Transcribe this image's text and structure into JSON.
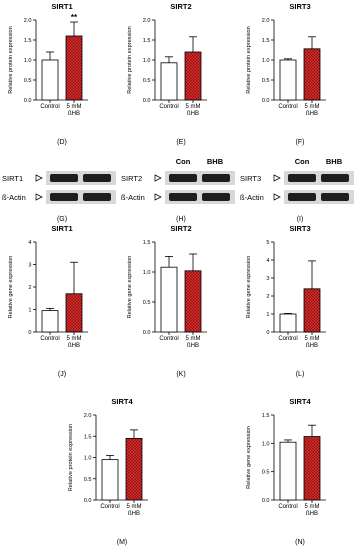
{
  "chart_data": [
    {
      "type": "bar",
      "title": "SIRT1",
      "ylabel": "Relative protein expression",
      "panel_label": "(D)",
      "categories": [
        "Control",
        "5 mM\nßHB"
      ],
      "series": [
        {
          "values": [
            1.0,
            1.6
          ],
          "errors": [
            0.2,
            0.35
          ],
          "colors": [
            "#ffffff",
            "#d42a2a"
          ],
          "hatch": [
            false,
            true
          ]
        }
      ],
      "ylim": [
        0,
        2
      ],
      "yticks": [
        {
          "value": 0,
          "label": "0.0"
        },
        0.5,
        {
          "value": 1,
          "label": "1.0"
        },
        1.5,
        {
          "value": 2,
          "label": "2.0"
        }
      ],
      "annotation": "**"
    },
    {
      "type": "bar",
      "title": "SIRT2",
      "ylabel": "Relative protein expression",
      "panel_label": "(E)",
      "categories": [
        "Control",
        "5 mM\nßHB"
      ],
      "series": [
        {
          "values": [
            0.93,
            1.2
          ],
          "errors": [
            0.15,
            0.38
          ],
          "colors": [
            "#ffffff",
            "#d42a2a"
          ],
          "hatch": [
            false,
            true
          ]
        }
      ],
      "ylim": [
        0,
        2
      ],
      "yticks": [
        {
          "value": 0,
          "label": "0.0"
        },
        0.5,
        {
          "value": 1,
          "label": "1.0"
        },
        1.5,
        {
          "value": 2,
          "label": "2.0"
        }
      ]
    },
    {
      "type": "bar",
      "title": "SIRT3",
      "ylabel": "Relative protein expression",
      "panel_label": "(F)",
      "categories": [
        "Control",
        "5 mM\nßHB"
      ],
      "series": [
        {
          "values": [
            1.0,
            1.28
          ],
          "errors": [
            0.03,
            0.3
          ],
          "colors": [
            "#ffffff",
            "#d42a2a"
          ],
          "hatch": [
            false,
            true
          ]
        }
      ],
      "ylim": [
        0,
        2
      ],
      "yticks": [
        {
          "value": 0,
          "label": "0.0"
        },
        0.5,
        {
          "value": 1,
          "label": "1.0"
        },
        1.5,
        {
          "value": 2,
          "label": "2.0"
        }
      ]
    },
    {
      "type": "bar",
      "title": "SIRT1",
      "ylabel": "Relative gene expression",
      "panel_label": "(J)",
      "categories": [
        "Control",
        "5 mM\nßHB"
      ],
      "series": [
        {
          "values": [
            0.95,
            1.7
          ],
          "errors": [
            0.1,
            1.4
          ],
          "colors": [
            "#ffffff",
            "#d42a2a"
          ],
          "hatch": [
            false,
            true
          ]
        }
      ],
      "ylim": [
        0,
        4
      ],
      "yticks": [
        0,
        1,
        2,
        3,
        4
      ]
    },
    {
      "type": "bar",
      "title": "SIRT2",
      "ylabel": "Relative gene expression",
      "panel_label": "(K)",
      "categories": [
        "Control",
        "5 mM\nßHB"
      ],
      "series": [
        {
          "values": [
            1.08,
            1.02
          ],
          "errors": [
            0.18,
            0.28
          ],
          "colors": [
            "#ffffff",
            "#d42a2a"
          ],
          "hatch": [
            false,
            true
          ]
        }
      ],
      "ylim": [
        0,
        1.5
      ],
      "yticks": [
        {
          "value": 0,
          "label": "0.0"
        },
        0.5,
        {
          "value": 1,
          "label": "1.0"
        },
        1.5
      ]
    },
    {
      "type": "bar",
      "title": "SIRT3",
      "ylabel": "Relative gene expression",
      "panel_label": "(L)",
      "categories": [
        "Control",
        "5 mM\nßHB"
      ],
      "series": [
        {
          "values": [
            1.0,
            2.4
          ],
          "errors": [
            0.03,
            1.55
          ],
          "colors": [
            "#ffffff",
            "#d42a2a"
          ],
          "hatch": [
            false,
            true
          ]
        }
      ],
      "ylim": [
        0,
        5
      ],
      "yticks": [
        0,
        1,
        2,
        3,
        4,
        5
      ]
    },
    {
      "type": "bar",
      "title": "SIRT4",
      "ylabel": "Relative protein expression",
      "panel_label": "(M)",
      "categories": [
        "Control",
        "5 mM\nßHB"
      ],
      "series": [
        {
          "values": [
            0.95,
            1.45
          ],
          "errors": [
            0.1,
            0.2
          ],
          "colors": [
            "#ffffff",
            "#d42a2a"
          ],
          "hatch": [
            false,
            true
          ]
        }
      ],
      "ylim": [
        0,
        2
      ],
      "yticks": [
        {
          "value": 0,
          "label": "0.0"
        },
        0.5,
        {
          "value": 1,
          "label": "1.0"
        },
        1.5,
        {
          "value": 2,
          "label": "2.0"
        }
      ]
    },
    {
      "type": "bar",
      "title": "SIRT4",
      "ylabel": "Relative gene expression",
      "panel_label": "(N)",
      "categories": [
        "Control",
        "5 mM\nßHB"
      ],
      "series": [
        {
          "values": [
            1.02,
            1.12
          ],
          "errors": [
            0.04,
            0.2
          ],
          "colors": [
            "#ffffff",
            "#d42a2a"
          ],
          "hatch": [
            false,
            true
          ]
        }
      ],
      "ylim": [
        0,
        1.5
      ],
      "yticks": [
        {
          "value": 0,
          "label": "0.0"
        },
        0.5,
        {
          "value": 1,
          "label": "1.0"
        },
        1.5
      ]
    }
  ],
  "blots": [
    {
      "panel_label": "(G)",
      "rows": [
        "SIRT1",
        "ß-Actin"
      ]
    },
    {
      "panel_label": "(H)",
      "columns": [
        "Con",
        "BHB"
      ],
      "rows": [
        "SIRT2",
        "ß-Actin"
      ]
    },
    {
      "panel_label": "(I)",
      "columns": [
        "Con",
        "BHB"
      ],
      "rows": [
        "SIRT3",
        "ß-Actin"
      ]
    }
  ]
}
